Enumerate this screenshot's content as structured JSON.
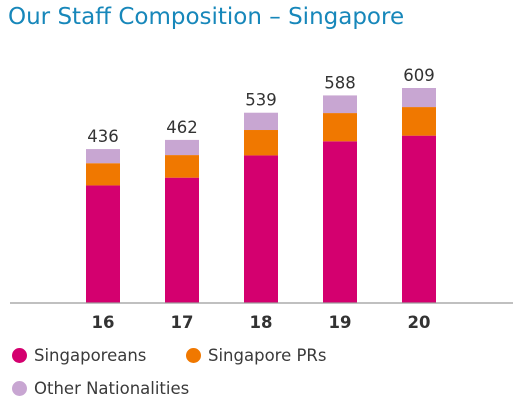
{
  "chart_data": {
    "type": "bar",
    "stacked": true,
    "title": "Our Staff Composition – Singapore",
    "xlabel": "",
    "ylabel": "",
    "categories": [
      "16",
      "17",
      "18",
      "19",
      "20"
    ],
    "totals": [
      436,
      462,
      539,
      588,
      609
    ],
    "series": [
      {
        "name": "Singaporeans",
        "color": "#d4006f",
        "values": [
          333,
          355,
          418,
          458,
          474
        ]
      },
      {
        "name": "Singapore PRs",
        "color": "#f07800",
        "values": [
          63,
          64,
          72,
          80,
          81
        ]
      },
      {
        "name": "Other Nationalities",
        "color": "#c8a6d2",
        "values": [
          40,
          43,
          49,
          50,
          54
        ]
      }
    ],
    "ylim": [
      0,
      700
    ],
    "grid": false,
    "legend_position": "bottom"
  }
}
